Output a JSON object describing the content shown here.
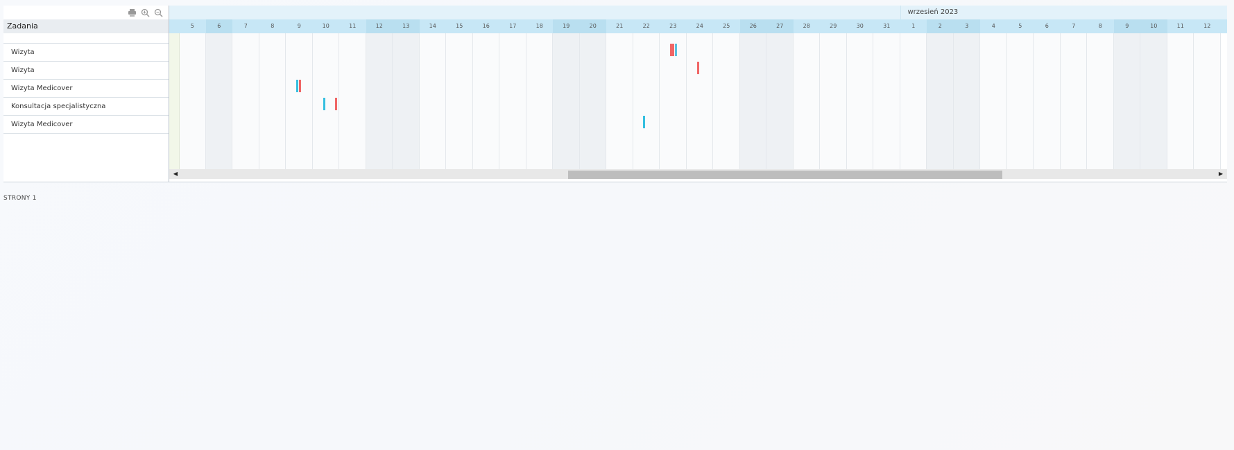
{
  "toolbar": {
    "icons": [
      {
        "name": "print-icon"
      },
      {
        "name": "zoom-in-icon"
      },
      {
        "name": "zoom-out-icon"
      }
    ]
  },
  "task_header": "Zadania",
  "tasks": [
    "Wizyta",
    "Wizyta",
    "Wizyta Medicover",
    "Konsultacja specjalistyczna",
    "Wizyta Medicover"
  ],
  "timeline": {
    "month_label": "wrzesień 2023",
    "month_start_day_index": 27,
    "days": [
      "5",
      "6",
      "7",
      "8",
      "9",
      "10",
      "11",
      "12",
      "13",
      "14",
      "15",
      "16",
      "17",
      "18",
      "19",
      "20",
      "21",
      "22",
      "23",
      "24",
      "25",
      "26",
      "27",
      "28",
      "29",
      "30",
      "31",
      "1",
      "2",
      "3",
      "4",
      "5",
      "6",
      "7",
      "8",
      "9",
      "10",
      "11",
      "12"
    ],
    "weekend_indices": [
      1,
      7,
      8,
      14,
      15,
      21,
      22,
      28,
      29,
      35,
      36
    ],
    "bars": [
      {
        "row": 0,
        "day_index": 18,
        "offset": 0.38,
        "color": "#f06666"
      },
      {
        "row": 0,
        "day_index": 18,
        "offset": 0.47,
        "color": "#f06666"
      },
      {
        "row": 0,
        "day_index": 18,
        "offset": 0.56,
        "color": "#5bc0de"
      },
      {
        "row": 1,
        "day_index": 19,
        "offset": 0.4,
        "color": "#f06666"
      },
      {
        "row": 2,
        "day_index": 4,
        "offset": 0.38,
        "color": "#35bfe0"
      },
      {
        "row": 2,
        "day_index": 4,
        "offset": 0.5,
        "color": "#f06666"
      },
      {
        "row": 3,
        "day_index": 5,
        "offset": 0.4,
        "color": "#35bfe0"
      },
      {
        "row": 3,
        "day_index": 5,
        "offset": 0.85,
        "color": "#f06666"
      },
      {
        "row": 4,
        "day_index": 17,
        "offset": 0.38,
        "color": "#35bfe0"
      }
    ]
  },
  "scroll": {
    "thumb_start_fraction": 0.375,
    "thumb_size_fraction": 0.418
  },
  "pages_label": "STRONY 1"
}
